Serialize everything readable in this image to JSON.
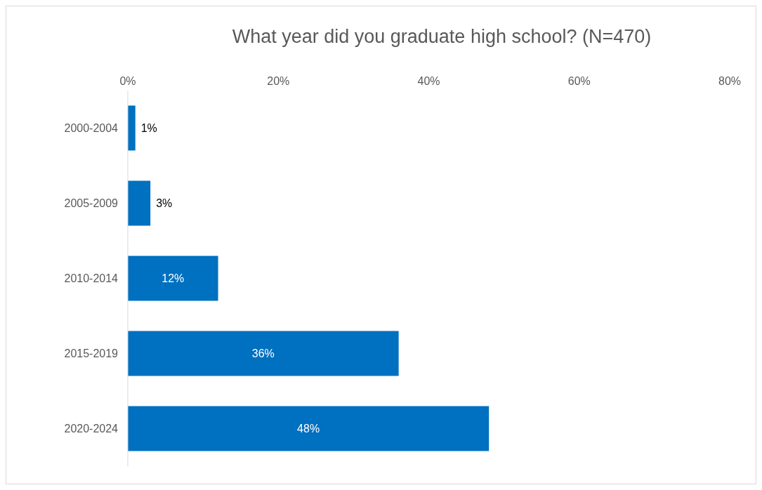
{
  "chart_data": {
    "type": "bar",
    "orientation": "horizontal",
    "title": "What year did you graduate high school? (N=470)",
    "categories": [
      "2000-2004",
      "2005-2009",
      "2010-2014",
      "2015-2019",
      "2020-2024"
    ],
    "values": [
      1,
      3,
      12,
      36,
      48
    ],
    "color": "#0070c0",
    "value_labels": [
      "1%",
      "3%",
      "12%",
      "36%",
      "48%"
    ],
    "xlim": [
      0,
      80
    ],
    "xticks": [
      {
        "value": 0,
        "label": "0%"
      },
      {
        "value": 20,
        "label": "20%"
      },
      {
        "value": 40,
        "label": "40%"
      },
      {
        "value": 60,
        "label": "60%"
      },
      {
        "value": 80,
        "label": "80%"
      }
    ],
    "grid": false
  }
}
